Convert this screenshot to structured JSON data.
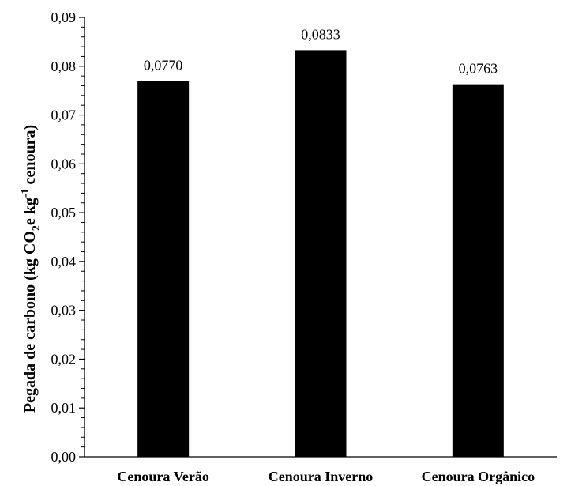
{
  "chart_data": {
    "type": "bar",
    "categories": [
      "Cenoura Verão",
      "Cenoura Inverno",
      "Cenoura Orgânico"
    ],
    "values": [
      0.077,
      0.0833,
      0.0763
    ],
    "data_labels": [
      "0,0770",
      "0,0833",
      "0,0763"
    ],
    "ylim": [
      0,
      0.09
    ],
    "ytick_labels": [
      "0,00",
      "0,01",
      "0,02",
      "0,03",
      "0,04",
      "0,05",
      "0,06",
      "0,07",
      "0,08",
      "0,09"
    ],
    "ylabel": {
      "part1": "Pegada de carbono (kg CO",
      "sub": "2",
      "part2": "e kg",
      "sup": "-1",
      "part3": " cenoura)"
    },
    "bar_color": "#000000",
    "grid": false,
    "legend": "none"
  }
}
